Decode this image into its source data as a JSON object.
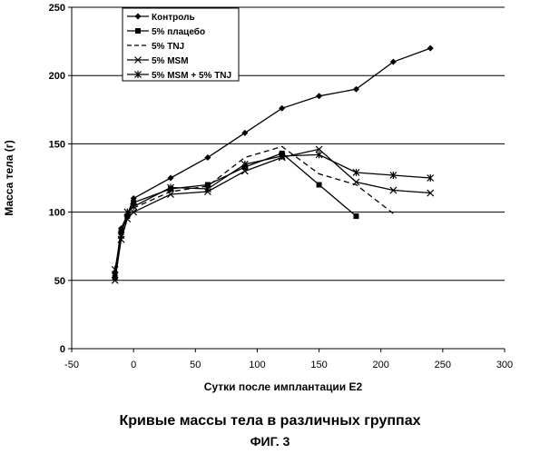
{
  "chart_data": {
    "type": "line",
    "xlabel": "Сутки после имплантации Е2",
    "ylabel": "Масса тела (г)",
    "xlim": [
      -50,
      300
    ],
    "ylim": [
      0,
      250
    ],
    "x_ticks": [
      "-50",
      "0",
      "50",
      "100",
      "150",
      "200",
      "250",
      "300"
    ],
    "y_ticks": [
      "0",
      "50",
      "100",
      "150",
      "200",
      "250"
    ],
    "grid": "horizontal",
    "legend_position": "top-left",
    "series": [
      {
        "name": "Контроль",
        "marker": "diamond",
        "dash": "solid",
        "x": [
          -15,
          -10,
          -5,
          0,
          30,
          60,
          90,
          120,
          150,
          180,
          210,
          240
        ],
        "y": [
          55,
          88,
          98,
          110,
          125,
          140,
          158,
          176,
          185,
          190,
          210,
          220
        ]
      },
      {
        "name": "5% плацебо",
        "marker": "square",
        "dash": "solid",
        "x": [
          -15,
          -10,
          -5,
          0,
          30,
          60,
          90,
          120,
          150,
          180
        ],
        "y": [
          52,
          85,
          97,
          107,
          117,
          120,
          133,
          143,
          120,
          97
        ]
      },
      {
        "name": "5% TNJ",
        "marker": "none",
        "dash": "dashed",
        "x": [
          -15,
          -10,
          -5,
          0,
          30,
          60,
          90,
          120,
          150,
          180,
          210
        ],
        "y": [
          52,
          84,
          96,
          103,
          115,
          119,
          140,
          148,
          128,
          120,
          99
        ]
      },
      {
        "name": "5% MSM",
        "marker": "x",
        "dash": "solid",
        "x": [
          -15,
          -10,
          -5,
          0,
          30,
          60,
          90,
          120,
          150,
          180,
          210,
          240
        ],
        "y": [
          50,
          80,
          95,
          100,
          113,
          115,
          130,
          140,
          146,
          122,
          116,
          114
        ]
      },
      {
        "name": "5% MSM + 5% TNJ",
        "marker": "asterisk",
        "dash": "solid",
        "x": [
          -15,
          -10,
          -5,
          0,
          30,
          60,
          90,
          120,
          150,
          180,
          210,
          240
        ],
        "y": [
          58,
          83,
          100,
          104,
          118,
          117,
          135,
          141,
          142,
          129,
          127,
          125
        ]
      }
    ]
  },
  "captions": {
    "main": "Кривые массы тела в различных группах",
    "figure": "ФИГ. 3"
  }
}
